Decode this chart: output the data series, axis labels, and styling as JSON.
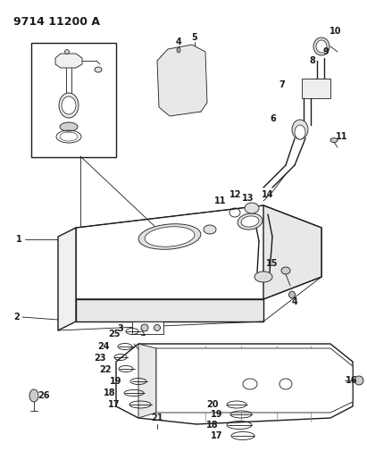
{
  "title": "9714 11200 A",
  "bg_color": "#ffffff",
  "line_color": "#1a1a1a",
  "title_fontsize": 9,
  "label_fontsize": 7.0,
  "fig_w": 4.11,
  "fig_h": 5.33,
  "dpi": 100
}
